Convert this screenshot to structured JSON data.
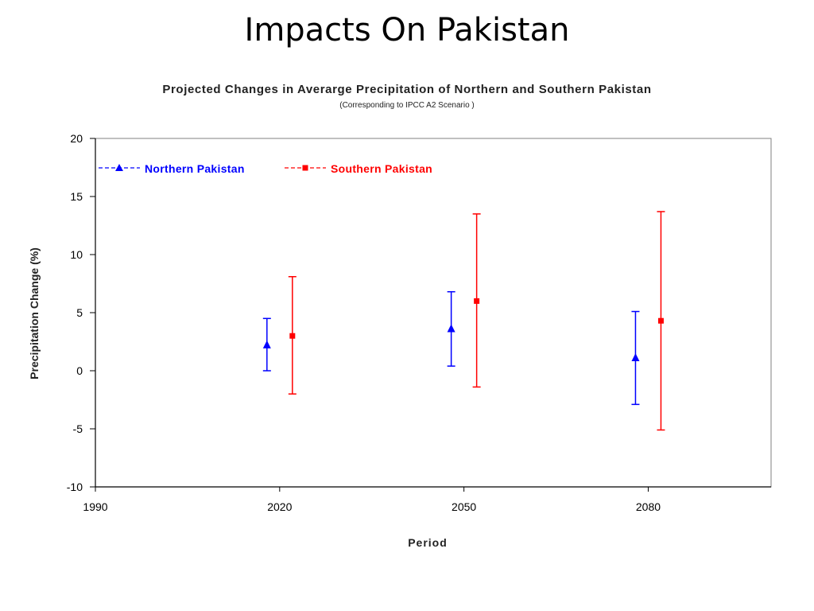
{
  "slide": {
    "title": "Impacts On Pakistan"
  },
  "chart_data": {
    "type": "scatter",
    "title": "Projected Changes in Averarge Precipitation of Northern and Southern Pakistan",
    "subtitle": "(Corresponding to IPCC A2 Scenario )",
    "xlabel": "Period",
    "ylabel": "Precipitation Change (%)",
    "xlim": [
      1990,
      2100
    ],
    "ylim": [
      -10,
      20
    ],
    "x_ticks": [
      "1990",
      "2020",
      "2050",
      "2080"
    ],
    "y_ticks": [
      "20",
      "15",
      "10",
      "5",
      "0",
      "-5",
      "-10"
    ],
    "grid": false,
    "legend_position": "top-left",
    "series": [
      {
        "name": "Northern Pakistan",
        "color": "#0000ff",
        "marker": "triangle",
        "points": [
          {
            "x": 2020,
            "y": 2.2,
            "low": 0.0,
            "high": 4.5
          },
          {
            "x": 2050,
            "y": 3.6,
            "low": 0.4,
            "high": 6.8
          },
          {
            "x": 2080,
            "y": 1.1,
            "low": -2.9,
            "high": 5.1
          }
        ]
      },
      {
        "name": "Southern Pakistan",
        "color": "#ff0000",
        "marker": "square",
        "points": [
          {
            "x": 2020,
            "y": 3.0,
            "low": -2.0,
            "high": 8.1
          },
          {
            "x": 2050,
            "y": 6.0,
            "low": -1.4,
            "high": 13.5
          },
          {
            "x": 2080,
            "y": 4.3,
            "low": -5.1,
            "high": 13.7
          }
        ]
      }
    ]
  }
}
